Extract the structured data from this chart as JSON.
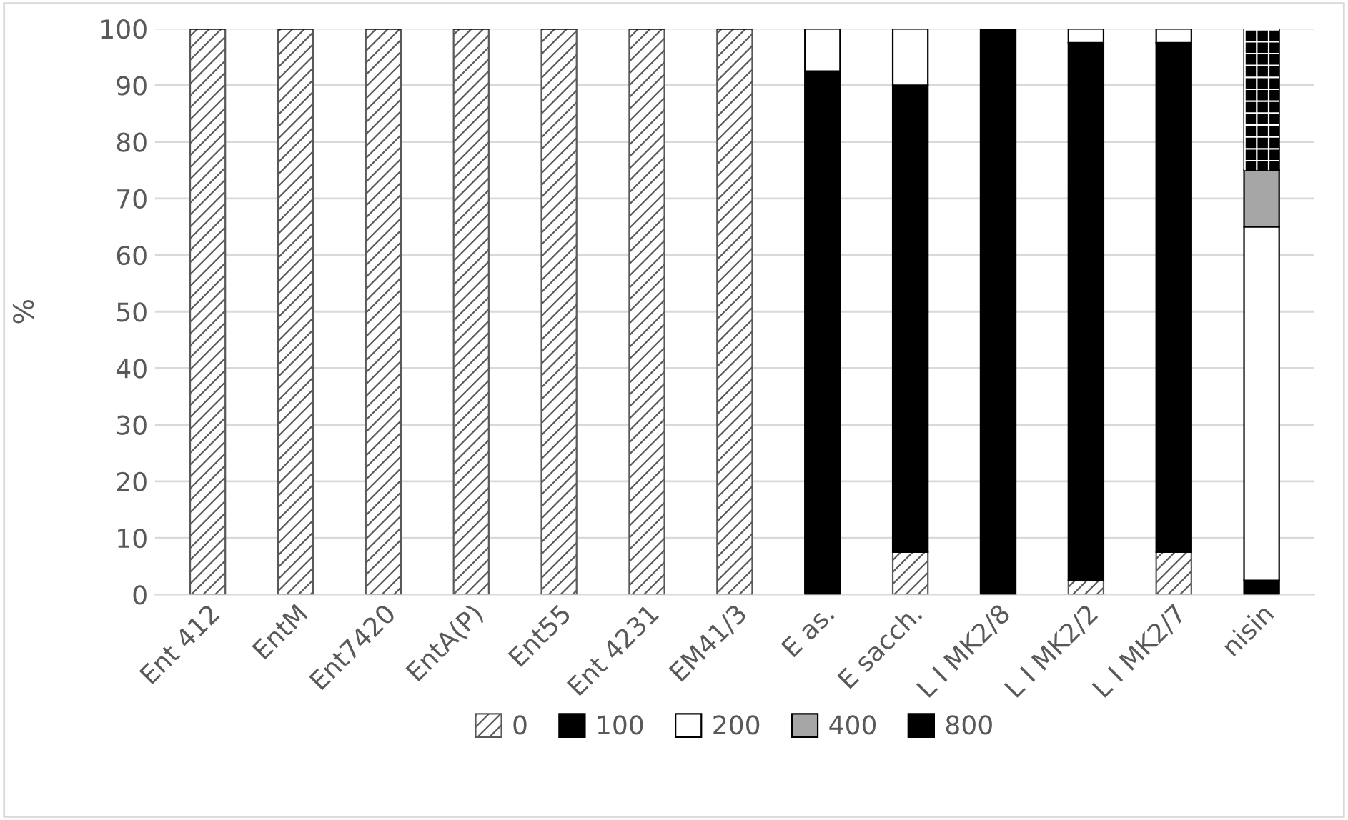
{
  "chart_data": {
    "type": "bar",
    "stacked": true,
    "ylabel": "%",
    "ylim": [
      0,
      100
    ],
    "yticks": [
      0,
      10,
      20,
      30,
      40,
      50,
      60,
      70,
      80,
      90,
      100
    ],
    "grid": "y",
    "legend": "bottom",
    "categories": [
      "Ent 412",
      "EntM",
      "Ent7420",
      "EntA(P)",
      "Ent55",
      "Ent 4231",
      "EM41/3",
      "E as.",
      "E sacch.",
      "L I MK2/8",
      "L I MK2/2",
      "L I MK2/7",
      "nisin"
    ],
    "series": [
      {
        "name": "0",
        "color": "#595959",
        "values": [
          100,
          100,
          100,
          100,
          100,
          100,
          100,
          0,
          7.5,
          0,
          2.5,
          7.5,
          0
        ]
      },
      {
        "name": "100",
        "color": "#000000",
        "values": [
          0,
          0,
          0,
          0,
          0,
          0,
          0,
          92.5,
          82.5,
          100,
          95,
          90,
          2.5
        ]
      },
      {
        "name": "200",
        "color": "#ffffff",
        "values": [
          0,
          0,
          0,
          0,
          0,
          0,
          0,
          7.5,
          10,
          0,
          2.5,
          2.5,
          62.5
        ]
      },
      {
        "name": "400",
        "color": "#a6a6a6",
        "values": [
          0,
          0,
          0,
          0,
          0,
          0,
          0,
          0,
          0,
          0,
          0,
          0,
          10
        ]
      },
      {
        "name": "800",
        "color": "#000000",
        "values": [
          0,
          0,
          0,
          0,
          0,
          0,
          0,
          0,
          0,
          0,
          0,
          0,
          25
        ]
      }
    ]
  }
}
